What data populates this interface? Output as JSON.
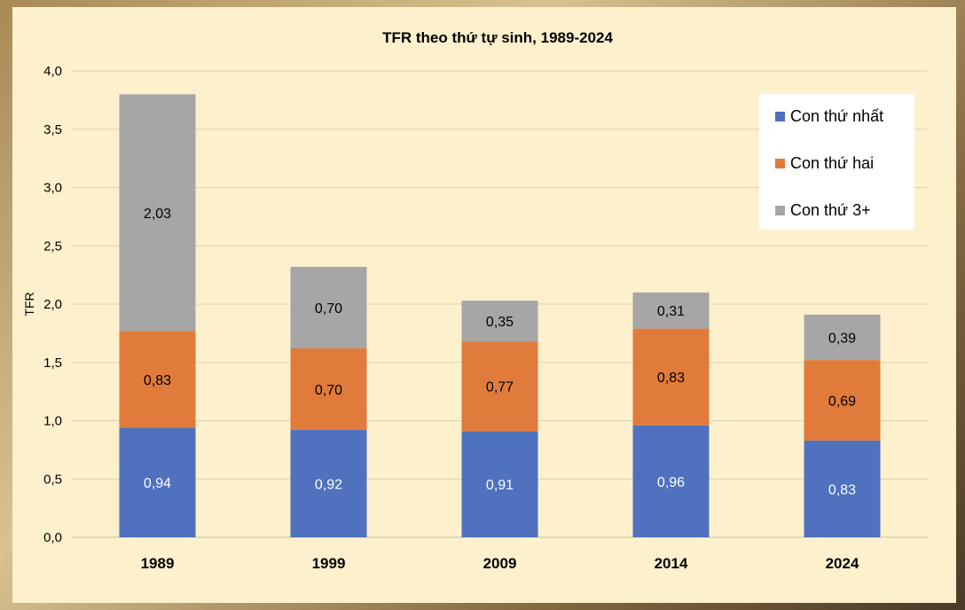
{
  "chart_data": {
    "type": "bar",
    "stacked": true,
    "title": "TFR theo thứ tự sinh, 1989-2024",
    "xlabel": "",
    "ylabel": "TFR",
    "ylim": [
      0,
      4
    ],
    "y_tick_labels": [
      "0,0",
      "0,5",
      "1,0",
      "1,5",
      "2,0",
      "2,5",
      "3,0",
      "3,5",
      "4,0"
    ],
    "grid": true,
    "legend_position": "top-right",
    "categories": [
      "1989",
      "1999",
      "2009",
      "2014",
      "2024"
    ],
    "series": [
      {
        "name": "Con thứ nhất",
        "color": "#4f71be",
        "values": [
          0.94,
          0.92,
          0.91,
          0.96,
          0.83
        ],
        "labels": [
          "0,94",
          "0,92",
          "0,91",
          "0,96",
          "0,83"
        ]
      },
      {
        "name": "Con thứ hai",
        "color": "#e07b3b",
        "values": [
          0.83,
          0.7,
          0.77,
          0.83,
          0.69
        ],
        "labels": [
          "0,83",
          "0,70",
          "0,77",
          "0,83",
          "0,69"
        ]
      },
      {
        "name": "Con thứ 3+",
        "color": "#a6a6a6",
        "values": [
          2.03,
          0.7,
          0.35,
          0.31,
          0.39
        ],
        "labels": [
          "2,03",
          "0,70",
          "0,35",
          "0,31",
          "0,39"
        ]
      }
    ]
  }
}
